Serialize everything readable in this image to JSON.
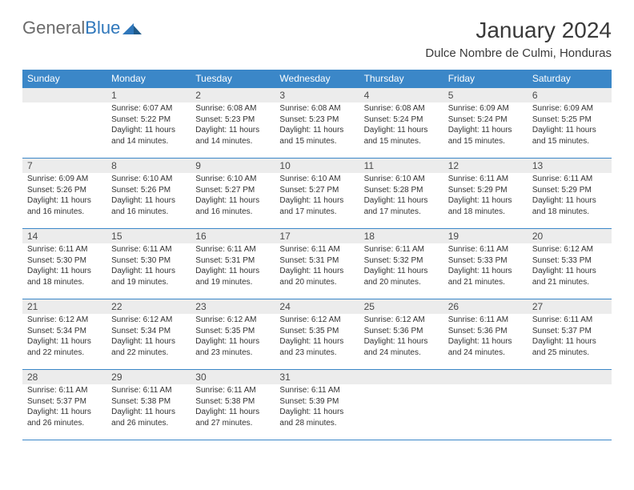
{
  "brand": {
    "part1": "General",
    "part2": "Blue"
  },
  "title": "January 2024",
  "location": "Dulce Nombre de Culmi, Honduras",
  "colors": {
    "header_bg": "#3b87c8",
    "header_fg": "#ffffff",
    "daynum_bg": "#ececec",
    "border": "#3b87c8",
    "text": "#333333",
    "title": "#3a3a3a",
    "logo_gray": "#6b6b6b",
    "logo_blue": "#2f77bb"
  },
  "weekdays": [
    "Sunday",
    "Monday",
    "Tuesday",
    "Wednesday",
    "Thursday",
    "Friday",
    "Saturday"
  ],
  "weeks": [
    [
      {
        "day": null
      },
      {
        "day": "1",
        "sunrise": "6:07 AM",
        "sunset": "5:22 PM",
        "daylight": "11 hours and 14 minutes."
      },
      {
        "day": "2",
        "sunrise": "6:08 AM",
        "sunset": "5:23 PM",
        "daylight": "11 hours and 14 minutes."
      },
      {
        "day": "3",
        "sunrise": "6:08 AM",
        "sunset": "5:23 PM",
        "daylight": "11 hours and 15 minutes."
      },
      {
        "day": "4",
        "sunrise": "6:08 AM",
        "sunset": "5:24 PM",
        "daylight": "11 hours and 15 minutes."
      },
      {
        "day": "5",
        "sunrise": "6:09 AM",
        "sunset": "5:24 PM",
        "daylight": "11 hours and 15 minutes."
      },
      {
        "day": "6",
        "sunrise": "6:09 AM",
        "sunset": "5:25 PM",
        "daylight": "11 hours and 15 minutes."
      }
    ],
    [
      {
        "day": "7",
        "sunrise": "6:09 AM",
        "sunset": "5:26 PM",
        "daylight": "11 hours and 16 minutes."
      },
      {
        "day": "8",
        "sunrise": "6:10 AM",
        "sunset": "5:26 PM",
        "daylight": "11 hours and 16 minutes."
      },
      {
        "day": "9",
        "sunrise": "6:10 AM",
        "sunset": "5:27 PM",
        "daylight": "11 hours and 16 minutes."
      },
      {
        "day": "10",
        "sunrise": "6:10 AM",
        "sunset": "5:27 PM",
        "daylight": "11 hours and 17 minutes."
      },
      {
        "day": "11",
        "sunrise": "6:10 AM",
        "sunset": "5:28 PM",
        "daylight": "11 hours and 17 minutes."
      },
      {
        "day": "12",
        "sunrise": "6:11 AM",
        "sunset": "5:29 PM",
        "daylight": "11 hours and 18 minutes."
      },
      {
        "day": "13",
        "sunrise": "6:11 AM",
        "sunset": "5:29 PM",
        "daylight": "11 hours and 18 minutes."
      }
    ],
    [
      {
        "day": "14",
        "sunrise": "6:11 AM",
        "sunset": "5:30 PM",
        "daylight": "11 hours and 18 minutes."
      },
      {
        "day": "15",
        "sunrise": "6:11 AM",
        "sunset": "5:30 PM",
        "daylight": "11 hours and 19 minutes."
      },
      {
        "day": "16",
        "sunrise": "6:11 AM",
        "sunset": "5:31 PM",
        "daylight": "11 hours and 19 minutes."
      },
      {
        "day": "17",
        "sunrise": "6:11 AM",
        "sunset": "5:31 PM",
        "daylight": "11 hours and 20 minutes."
      },
      {
        "day": "18",
        "sunrise": "6:11 AM",
        "sunset": "5:32 PM",
        "daylight": "11 hours and 20 minutes."
      },
      {
        "day": "19",
        "sunrise": "6:11 AM",
        "sunset": "5:33 PM",
        "daylight": "11 hours and 21 minutes."
      },
      {
        "day": "20",
        "sunrise": "6:12 AM",
        "sunset": "5:33 PM",
        "daylight": "11 hours and 21 minutes."
      }
    ],
    [
      {
        "day": "21",
        "sunrise": "6:12 AM",
        "sunset": "5:34 PM",
        "daylight": "11 hours and 22 minutes."
      },
      {
        "day": "22",
        "sunrise": "6:12 AM",
        "sunset": "5:34 PM",
        "daylight": "11 hours and 22 minutes."
      },
      {
        "day": "23",
        "sunrise": "6:12 AM",
        "sunset": "5:35 PM",
        "daylight": "11 hours and 23 minutes."
      },
      {
        "day": "24",
        "sunrise": "6:12 AM",
        "sunset": "5:35 PM",
        "daylight": "11 hours and 23 minutes."
      },
      {
        "day": "25",
        "sunrise": "6:12 AM",
        "sunset": "5:36 PM",
        "daylight": "11 hours and 24 minutes."
      },
      {
        "day": "26",
        "sunrise": "6:11 AM",
        "sunset": "5:36 PM",
        "daylight": "11 hours and 24 minutes."
      },
      {
        "day": "27",
        "sunrise": "6:11 AM",
        "sunset": "5:37 PM",
        "daylight": "11 hours and 25 minutes."
      }
    ],
    [
      {
        "day": "28",
        "sunrise": "6:11 AM",
        "sunset": "5:37 PM",
        "daylight": "11 hours and 26 minutes."
      },
      {
        "day": "29",
        "sunrise": "6:11 AM",
        "sunset": "5:38 PM",
        "daylight": "11 hours and 26 minutes."
      },
      {
        "day": "30",
        "sunrise": "6:11 AM",
        "sunset": "5:38 PM",
        "daylight": "11 hours and 27 minutes."
      },
      {
        "day": "31",
        "sunrise": "6:11 AM",
        "sunset": "5:39 PM",
        "daylight": "11 hours and 28 minutes."
      },
      {
        "day": null
      },
      {
        "day": null
      },
      {
        "day": null
      }
    ]
  ],
  "labels": {
    "sunrise": "Sunrise:",
    "sunset": "Sunset:",
    "daylight": "Daylight:"
  }
}
